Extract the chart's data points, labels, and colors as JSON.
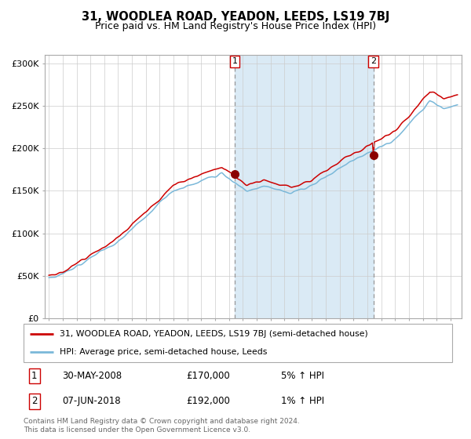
{
  "title": "31, WOODLEA ROAD, YEADON, LEEDS, LS19 7BJ",
  "subtitle": "Price paid vs. HM Land Registry's House Price Index (HPI)",
  "title_fontsize": 10.5,
  "subtitle_fontsize": 9,
  "ylim": [
    0,
    310000
  ],
  "yticks": [
    0,
    50000,
    100000,
    150000,
    200000,
    250000,
    300000
  ],
  "ytick_labels": [
    "£0",
    "£50K",
    "£100K",
    "£150K",
    "£200K",
    "£250K",
    "£300K"
  ],
  "hpi_color": "#7ab8d9",
  "price_color": "#cc0000",
  "marker_color": "#8b0000",
  "bg_color": "#ffffff",
  "grid_color": "#cccccc",
  "shaded_color": "#daeaf5",
  "sale1_year": 2008.42,
  "sale1_price": 170000,
  "sale1_label": "1",
  "sale1_date": "30-MAY-2008",
  "sale1_pct": "5% ↑ HPI",
  "sale2_year": 2018.44,
  "sale2_price": 192000,
  "sale2_label": "2",
  "sale2_date": "07-JUN-2018",
  "sale2_pct": "1% ↑ HPI",
  "legend_line1": "31, WOODLEA ROAD, YEADON, LEEDS, LS19 7BJ (semi-detached house)",
  "legend_line2": "HPI: Average price, semi-detached house, Leeds",
  "footer": "Contains HM Land Registry data © Crown copyright and database right 2024.\nThis data is licensed under the Open Government Licence v3.0.",
  "start_year": 1995,
  "end_year": 2024
}
